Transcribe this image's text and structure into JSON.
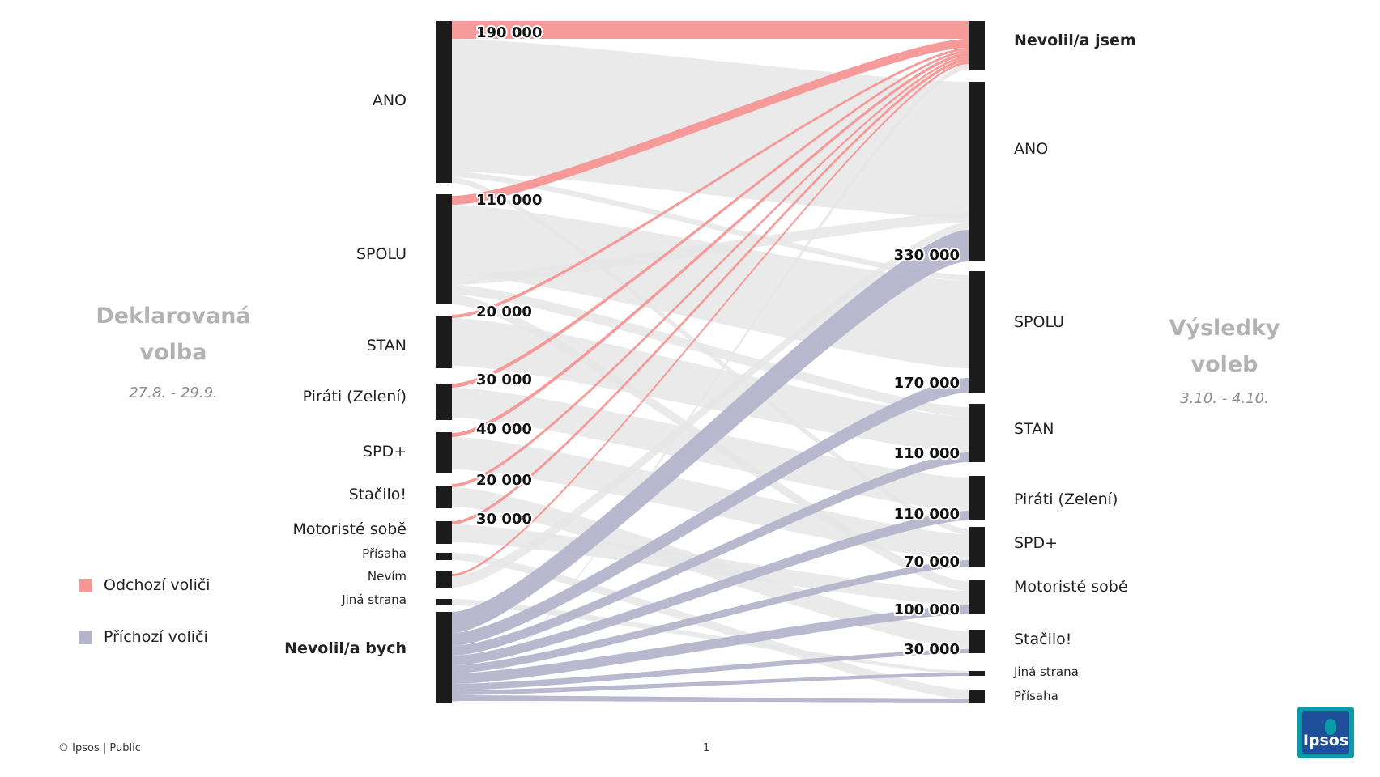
{
  "left_title": {
    "line1": "Deklarovaná",
    "line2": "volba",
    "date": "27.8. - 29.9."
  },
  "right_title": {
    "line1": "Výsledky",
    "line2": "voleb",
    "date": "3.10. - 4.10."
  },
  "legend": {
    "outgoing": {
      "label": "Odchozí voliči",
      "color": "#f79695"
    },
    "incoming": {
      "label": "Příchozí voliči",
      "color": "#b4b5cc"
    }
  },
  "footer": {
    "copyright": "© Ipsos | Public",
    "page": "1"
  },
  "logo": {
    "text": "Ipsos"
  },
  "chart_data": {
    "type": "sankey",
    "colors": {
      "node": "#1c1c1c",
      "neutral_flow": "#e6e6e6",
      "outgoing": "#f79695",
      "incoming": "#b4b5cc"
    },
    "left_nodes": [
      {
        "id": "ANO",
        "label": "ANO",
        "bold": false
      },
      {
        "id": "SPOLU",
        "label": "SPOLU",
        "bold": false
      },
      {
        "id": "STAN",
        "label": "STAN",
        "bold": false
      },
      {
        "id": "PIR",
        "label": "Piráti (Zelení)",
        "bold": false
      },
      {
        "id": "SPD",
        "label": "SPD+",
        "bold": false
      },
      {
        "id": "STA",
        "label": "Stačilo!",
        "bold": false
      },
      {
        "id": "MOT",
        "label": "Motoristé sobě",
        "bold": false
      },
      {
        "id": "PRI",
        "label": "Přísaha",
        "bold": false
      },
      {
        "id": "NEV",
        "label": "Nevím",
        "bold": false
      },
      {
        "id": "JIN",
        "label": "Jiná strana",
        "bold": false
      },
      {
        "id": "NVB",
        "label": "Nevolil/a bych",
        "bold": true
      }
    ],
    "right_nodes": [
      {
        "id": "NVJ",
        "label": "Nevolil/a jsem",
        "bold": true
      },
      {
        "id": "ANO",
        "label": "ANO",
        "bold": false
      },
      {
        "id": "SPOLU",
        "label": "SPOLU",
        "bold": false
      },
      {
        "id": "STAN",
        "label": "STAN",
        "bold": false
      },
      {
        "id": "PIR",
        "label": "Piráti (Zelení)",
        "bold": false
      },
      {
        "id": "SPD",
        "label": "SPD+",
        "bold": false
      },
      {
        "id": "MOT",
        "label": "Motoristé sobě",
        "bold": false
      },
      {
        "id": "STA",
        "label": "Stačilo!",
        "bold": false
      },
      {
        "id": "JIN",
        "label": "Jiná strana",
        "bold": false
      },
      {
        "id": "PRI",
        "label": "Přísaha",
        "bold": false
      }
    ],
    "outgoing_flows": [
      {
        "from": "ANO",
        "to": "NVJ",
        "label": "190 000"
      },
      {
        "from": "SPOLU",
        "to": "NVJ",
        "label": "110 000"
      },
      {
        "from": "STAN",
        "to": "NVJ",
        "label": "20 000"
      },
      {
        "from": "PIR",
        "to": "NVJ",
        "label": "30 000"
      },
      {
        "from": "SPD",
        "to": "NVJ",
        "label": "40 000"
      },
      {
        "from": "STA",
        "to": "NVJ",
        "label": "20 000"
      },
      {
        "from": "MOT",
        "to": "NVJ",
        "label": "30 000"
      },
      {
        "from": "NEV",
        "to": "NVJ",
        "label": ""
      }
    ],
    "incoming_flows": [
      {
        "from": "NVB",
        "to": "ANO",
        "label": "330 000"
      },
      {
        "from": "NVB",
        "to": "SPOLU",
        "label": "170 000"
      },
      {
        "from": "NVB",
        "to": "STAN",
        "label": "110 000"
      },
      {
        "from": "NVB",
        "to": "PIR",
        "label": "110 000"
      },
      {
        "from": "NVB",
        "to": "SPD",
        "label": "70 000"
      },
      {
        "from": "NVB",
        "to": "MOT",
        "label": "100 000"
      },
      {
        "from": "NVB",
        "to": "STA",
        "label": "30 000"
      },
      {
        "from": "NVB",
        "to": "JIN",
        "label": ""
      },
      {
        "from": "NVB",
        "to": "PRI",
        "label": ""
      }
    ]
  }
}
